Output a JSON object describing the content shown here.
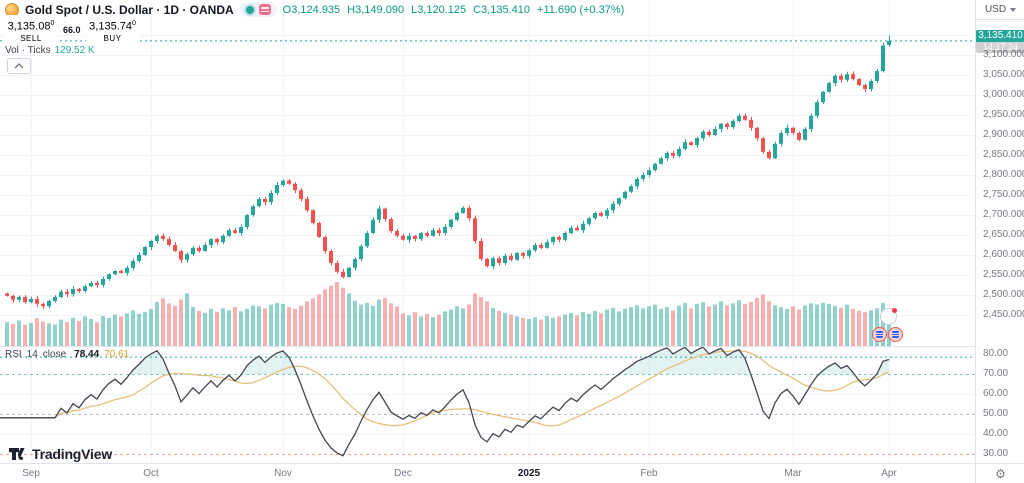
{
  "header": {
    "symbol_title": "Gold Spot / U.S. Dollar · 1D · OANDA",
    "ohlc": {
      "o_label": "O",
      "o": "3,124.935",
      "h_label": "H",
      "h": "3,149.090",
      "l_label": "L",
      "l": "3,120.125",
      "c_label": "C",
      "c": "3,135.410",
      "change": "+11.690",
      "change_pct": "(+0.37%)"
    },
    "sell_button": {
      "price": "3,135.08",
      "sup": "0",
      "label": "SELL"
    },
    "spread": "66.0",
    "buy_button": {
      "price": "3,135.74",
      "sup": "0",
      "label": "BUY"
    },
    "volume_row": {
      "label": "Vol · Ticks",
      "value": "129.52 K"
    }
  },
  "rsi_row": {
    "name": "RSI",
    "params": "14",
    "source": "close",
    "value": "78.44",
    "ma_value": "70.61"
  },
  "price_axis": {
    "currency": "USD",
    "badge": {
      "price": "3,135.410",
      "countdown": "14:17:24"
    }
  },
  "logo": {
    "text": "TradingView"
  },
  "colors": {
    "up": "#26a69a",
    "down": "#ef5350",
    "vol_up": "rgba(38,166,154,0.5)",
    "vol_down": "rgba(239,83,80,0.45)",
    "sell": "#f23645",
    "buy": "#2962ff",
    "grid": "#f0f3fa",
    "separator": "#e0e3eb",
    "axis_text": "#787b86",
    "ohlc_text": "#089981",
    "rsi_line": "#434651",
    "rsi_ma": "#e5c07b",
    "band_upper": "rgba(38,166,154,0.6)",
    "band_mid": "rgba(120,123,134,0.5)",
    "band_lower": "rgba(239,83,80,0.55)",
    "ob_fill": "rgba(38,166,154,0.13)",
    "badge_bg": "#26a69a"
  },
  "chart_data": {
    "type": "candlestick",
    "title": "Gold Spot / U.S. Dollar · 1D · OANDA",
    "symbol": "XAUUSD",
    "timeframe": "1D",
    "x_range": [
      "Sep 2024",
      "Apr 2025"
    ],
    "price_ticks": [
      {
        "label": "3,150.000",
        "v": 3150
      },
      {
        "label": "3,100.000",
        "v": 3100
      },
      {
        "label": "3,050.000",
        "v": 3050
      },
      {
        "label": "3,000.000",
        "v": 3000
      },
      {
        "label": "2,950.000",
        "v": 2950
      },
      {
        "label": "2,900.000",
        "v": 2900
      },
      {
        "label": "2,850.000",
        "v": 2850
      },
      {
        "label": "2,800.000",
        "v": 2800
      },
      {
        "label": "2,750.000",
        "v": 2750
      },
      {
        "label": "2,700.000",
        "v": 2700
      },
      {
        "label": "2,650.000",
        "v": 2650
      },
      {
        "label": "2,600.000",
        "v": 2600
      },
      {
        "label": "2,550.000",
        "v": 2550
      },
      {
        "label": "2,500.000",
        "v": 2500
      },
      {
        "label": "2,450.000",
        "v": 2450
      }
    ],
    "rsi_ticks": [
      {
        "label": "80.00",
        "v": 80
      },
      {
        "label": "70.00",
        "v": 70
      },
      {
        "label": "60.00",
        "v": 60
      },
      {
        "label": "50.00",
        "v": 50
      },
      {
        "label": "40.00",
        "v": 40
      },
      {
        "label": "30.00",
        "v": 30
      }
    ],
    "month_ticks": [
      {
        "label": "Sep",
        "index": 4
      },
      {
        "label": "Oct",
        "index": 24
      },
      {
        "label": "Nov",
        "index": 46
      },
      {
        "label": "Dec",
        "index": 66
      },
      {
        "label": "2025",
        "index": 87,
        "major": true
      },
      {
        "label": "Feb",
        "index": 107
      },
      {
        "label": "Mar",
        "index": 131
      },
      {
        "label": "Apr",
        "index": 147
      }
    ],
    "closes": [
      2498,
      2488,
      2495,
      2482,
      2490,
      2478,
      2472,
      2485,
      2495,
      2508,
      2502,
      2515,
      2510,
      2522,
      2530,
      2525,
      2540,
      2552,
      2560,
      2555,
      2568,
      2585,
      2600,
      2620,
      2635,
      2648,
      2640,
      2625,
      2610,
      2588,
      2602,
      2618,
      2610,
      2625,
      2640,
      2632,
      2648,
      2662,
      2655,
      2670,
      2700,
      2722,
      2740,
      2732,
      2755,
      2775,
      2786,
      2778,
      2762,
      2740,
      2712,
      2680,
      2645,
      2610,
      2580,
      2558,
      2545,
      2568,
      2590,
      2622,
      2655,
      2688,
      2716,
      2690,
      2660,
      2648,
      2638,
      2648,
      2640,
      2655,
      2648,
      2662,
      2655,
      2670,
      2688,
      2705,
      2718,
      2692,
      2635,
      2590,
      2572,
      2592,
      2580,
      2598,
      2588,
      2605,
      2598,
      2612,
      2625,
      2618,
      2632,
      2645,
      2638,
      2655,
      2668,
      2662,
      2678,
      2692,
      2705,
      2698,
      2712,
      2728,
      2742,
      2758,
      2772,
      2790,
      2800,
      2812,
      2828,
      2842,
      2855,
      2848,
      2865,
      2882,
      2875,
      2892,
      2908,
      2900,
      2915,
      2928,
      2920,
      2935,
      2948,
      2938,
      2918,
      2892,
      2858,
      2842,
      2878,
      2905,
      2918,
      2905,
      2888,
      2915,
      2948,
      2982,
      3008,
      3030,
      3048,
      3038,
      3052,
      3040,
      3025,
      3015,
      3035,
      3060,
      3124,
      3135.41
    ],
    "volumes_k": [
      95,
      88,
      102,
      85,
      92,
      110,
      98,
      90,
      86,
      105,
      95,
      112,
      100,
      118,
      108,
      95,
      120,
      112,
      125,
      118,
      130,
      142,
      128,
      135,
      148,
      175,
      190,
      170,
      160,
      185,
      210,
      155,
      140,
      132,
      148,
      136,
      150,
      142,
      155,
      138,
      148,
      162,
      158,
      150,
      165,
      172,
      168,
      155,
      148,
      160,
      178,
      190,
      205,
      225,
      240,
      255,
      232,
      210,
      180,
      165,
      172,
      160,
      185,
      192,
      170,
      158,
      130,
      122,
      135,
      118,
      128,
      115,
      125,
      138,
      145,
      158,
      150,
      165,
      210,
      195,
      178,
      152,
      140,
      132,
      125,
      118,
      112,
      108,
      115,
      105,
      120,
      112,
      118,
      125,
      132,
      122,
      135,
      128,
      140,
      130,
      145,
      152,
      138,
      148,
      155,
      162,
      150,
      158,
      165,
      148,
      155,
      142,
      160,
      172,
      150,
      168,
      175,
      158,
      165,
      178,
      162,
      170,
      182,
      168,
      175,
      192,
      205,
      178,
      162,
      155,
      148,
      158,
      145,
      162,
      170,
      165,
      172,
      168,
      160,
      152,
      165,
      148,
      140,
      135,
      142,
      150,
      172,
      130
    ],
    "last_candle": {
      "open": 3124.935,
      "high": 3149.09,
      "low": 3120.125,
      "close": 3135.41,
      "change": 11.69,
      "change_pct": 0.37
    },
    "current_price": 3135.41,
    "indicators": [
      {
        "type": "RSI",
        "length": 14,
        "source": "close",
        "value": 78.44,
        "ma_value": 70.61,
        "bands": [
          70,
          50,
          30
        ]
      },
      {
        "type": "Volume",
        "mode": "Ticks",
        "last": "129.52 K"
      }
    ]
  }
}
